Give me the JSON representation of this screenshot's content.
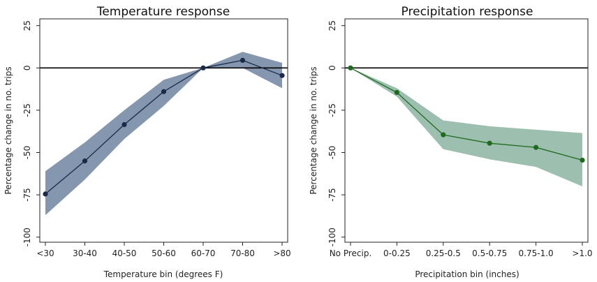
{
  "chart_data": [
    {
      "type": "line",
      "title": "Temperature response",
      "xlabel": "Temperature bin (degrees F)",
      "ylabel": "Percentage change in no. trips",
      "categories": [
        "<30",
        "30-40",
        "40-50",
        "50-60",
        "60-70",
        "70-80",
        ">80"
      ],
      "yticks": [
        "25",
        "0",
        "-25",
        "-50",
        "-75",
        "-100"
      ],
      "ytick_values": [
        25,
        0,
        -25,
        -50,
        -75,
        -100
      ],
      "ylim": [
        -103,
        29
      ],
      "series": [
        {
          "values": [
            -74.5,
            -55,
            -33.5,
            -14,
            0,
            4.5,
            -4.5
          ],
          "ci_lower": [
            -87,
            -66,
            -42,
            -22.5,
            0,
            0,
            -12
          ],
          "ci_upper": [
            -61,
            -44,
            -25,
            -7,
            0,
            9.5,
            3
          ]
        }
      ],
      "colors": {
        "line": "#1b2a4a",
        "band": "#8497ae",
        "zero_line": "#000000"
      },
      "grid": false
    },
    {
      "type": "line",
      "title": "Precipitation response",
      "xlabel": "Precipitation bin (inches)",
      "ylabel": "Percentage change in no. trips",
      "categories": [
        "No Precip.",
        "0-0.25",
        "0.25-0.5",
        "0.5-0.75",
        "0.75-1.0",
        ">1.0"
      ],
      "yticks": [
        "25",
        "0",
        "-25",
        "-50",
        "-75",
        "-100"
      ],
      "ytick_values": [
        25,
        0,
        -25,
        -50,
        -75,
        -100
      ],
      "ylim": [
        -103,
        29
      ],
      "series": [
        {
          "values": [
            0,
            -14.5,
            -39.5,
            -44.5,
            -47,
            -54.5
          ],
          "ci_lower": [
            0,
            -17,
            -48,
            -54,
            -58.5,
            -70
          ],
          "ci_upper": [
            0,
            -12,
            -31,
            -34.5,
            -36.5,
            -38.5
          ]
        }
      ],
      "colors": {
        "line": "#1e6b1e",
        "band": "#9dbfaf",
        "zero_line": "#000000"
      },
      "grid": false
    }
  ]
}
